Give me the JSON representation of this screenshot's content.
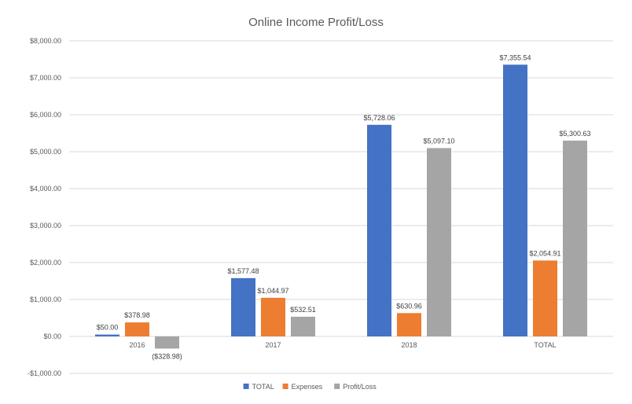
{
  "chart_data": {
    "type": "bar",
    "title": "Online Income Profit/Loss",
    "categories": [
      "2016",
      "2017",
      "2018",
      "TOTAL"
    ],
    "series": [
      {
        "name": "TOTAL",
        "color": "#4472C4",
        "values": [
          50.0,
          1577.48,
          5728.06,
          7355.54
        ],
        "labels": [
          "$50.00",
          "$1,577.48",
          "$5,728.06",
          "$7,355.54"
        ]
      },
      {
        "name": "Expenses",
        "color": "#ED7D31",
        "values": [
          378.98,
          1044.97,
          630.96,
          2054.91
        ],
        "labels": [
          "$378.98",
          "$1,044.97",
          "$630.96",
          "$2,054.91"
        ]
      },
      {
        "name": "Profit/Loss",
        "color": "#A5A5A5",
        "values": [
          -328.98,
          532.51,
          5097.1,
          5300.63
        ],
        "labels": [
          "($328.98)",
          "$532.51",
          "$5,097.10",
          "$5,300.63"
        ]
      }
    ],
    "negative_label_color": "#FF0000",
    "ylim": [
      -1000,
      8000
    ],
    "yticks": [
      -1000,
      0,
      1000,
      2000,
      3000,
      4000,
      5000,
      6000,
      7000,
      8000
    ],
    "ytick_labels": [
      "-$1,000.00",
      "$0.00",
      "$1,000.00",
      "$2,000.00",
      "$3,000.00",
      "$4,000.00",
      "$5,000.00",
      "$6,000.00",
      "$7,000.00",
      "$8,000.00"
    ],
    "grid": true,
    "legend_position": "bottom"
  }
}
